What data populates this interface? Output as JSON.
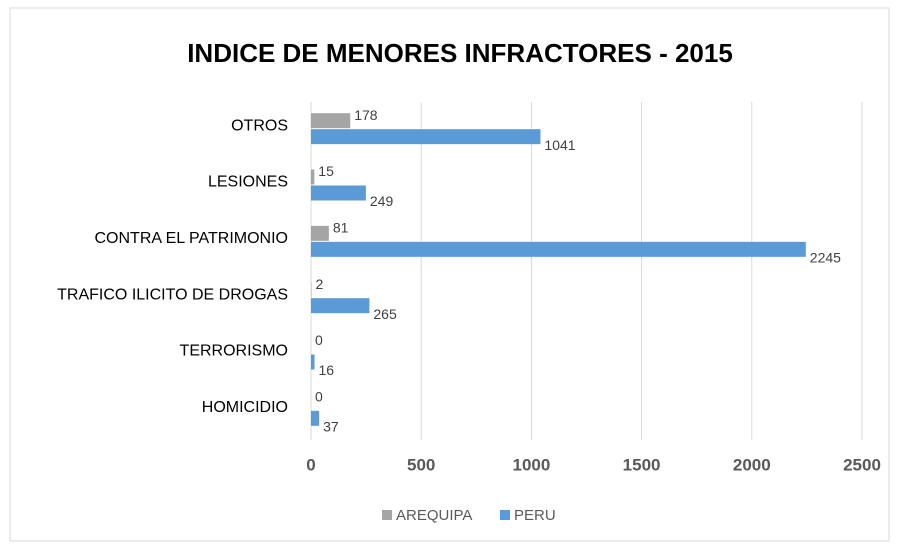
{
  "chart_data": {
    "type": "bar",
    "orientation": "horizontal",
    "title": "INDICE DE MENORES INFRACTORES - 2015",
    "categories": [
      "OTROS",
      "LESIONES",
      "CONTRA EL PATRIMONIO",
      "TRAFICO ILICITO DE DROGAS",
      "TERRORISMO",
      "HOMICIDIO"
    ],
    "series": [
      {
        "name": "AREQUIPA",
        "color": "#a5a5a5",
        "values": [
          178,
          15,
          81,
          2,
          0,
          0
        ]
      },
      {
        "name": "PERU",
        "color": "#5b9bd5",
        "values": [
          1041,
          249,
          2245,
          265,
          16,
          37
        ]
      }
    ],
    "xlim": [
      0,
      2500
    ],
    "xticks": [
      0,
      500,
      1000,
      1500,
      2000,
      2500
    ],
    "grid": true,
    "legend": "bottom"
  }
}
